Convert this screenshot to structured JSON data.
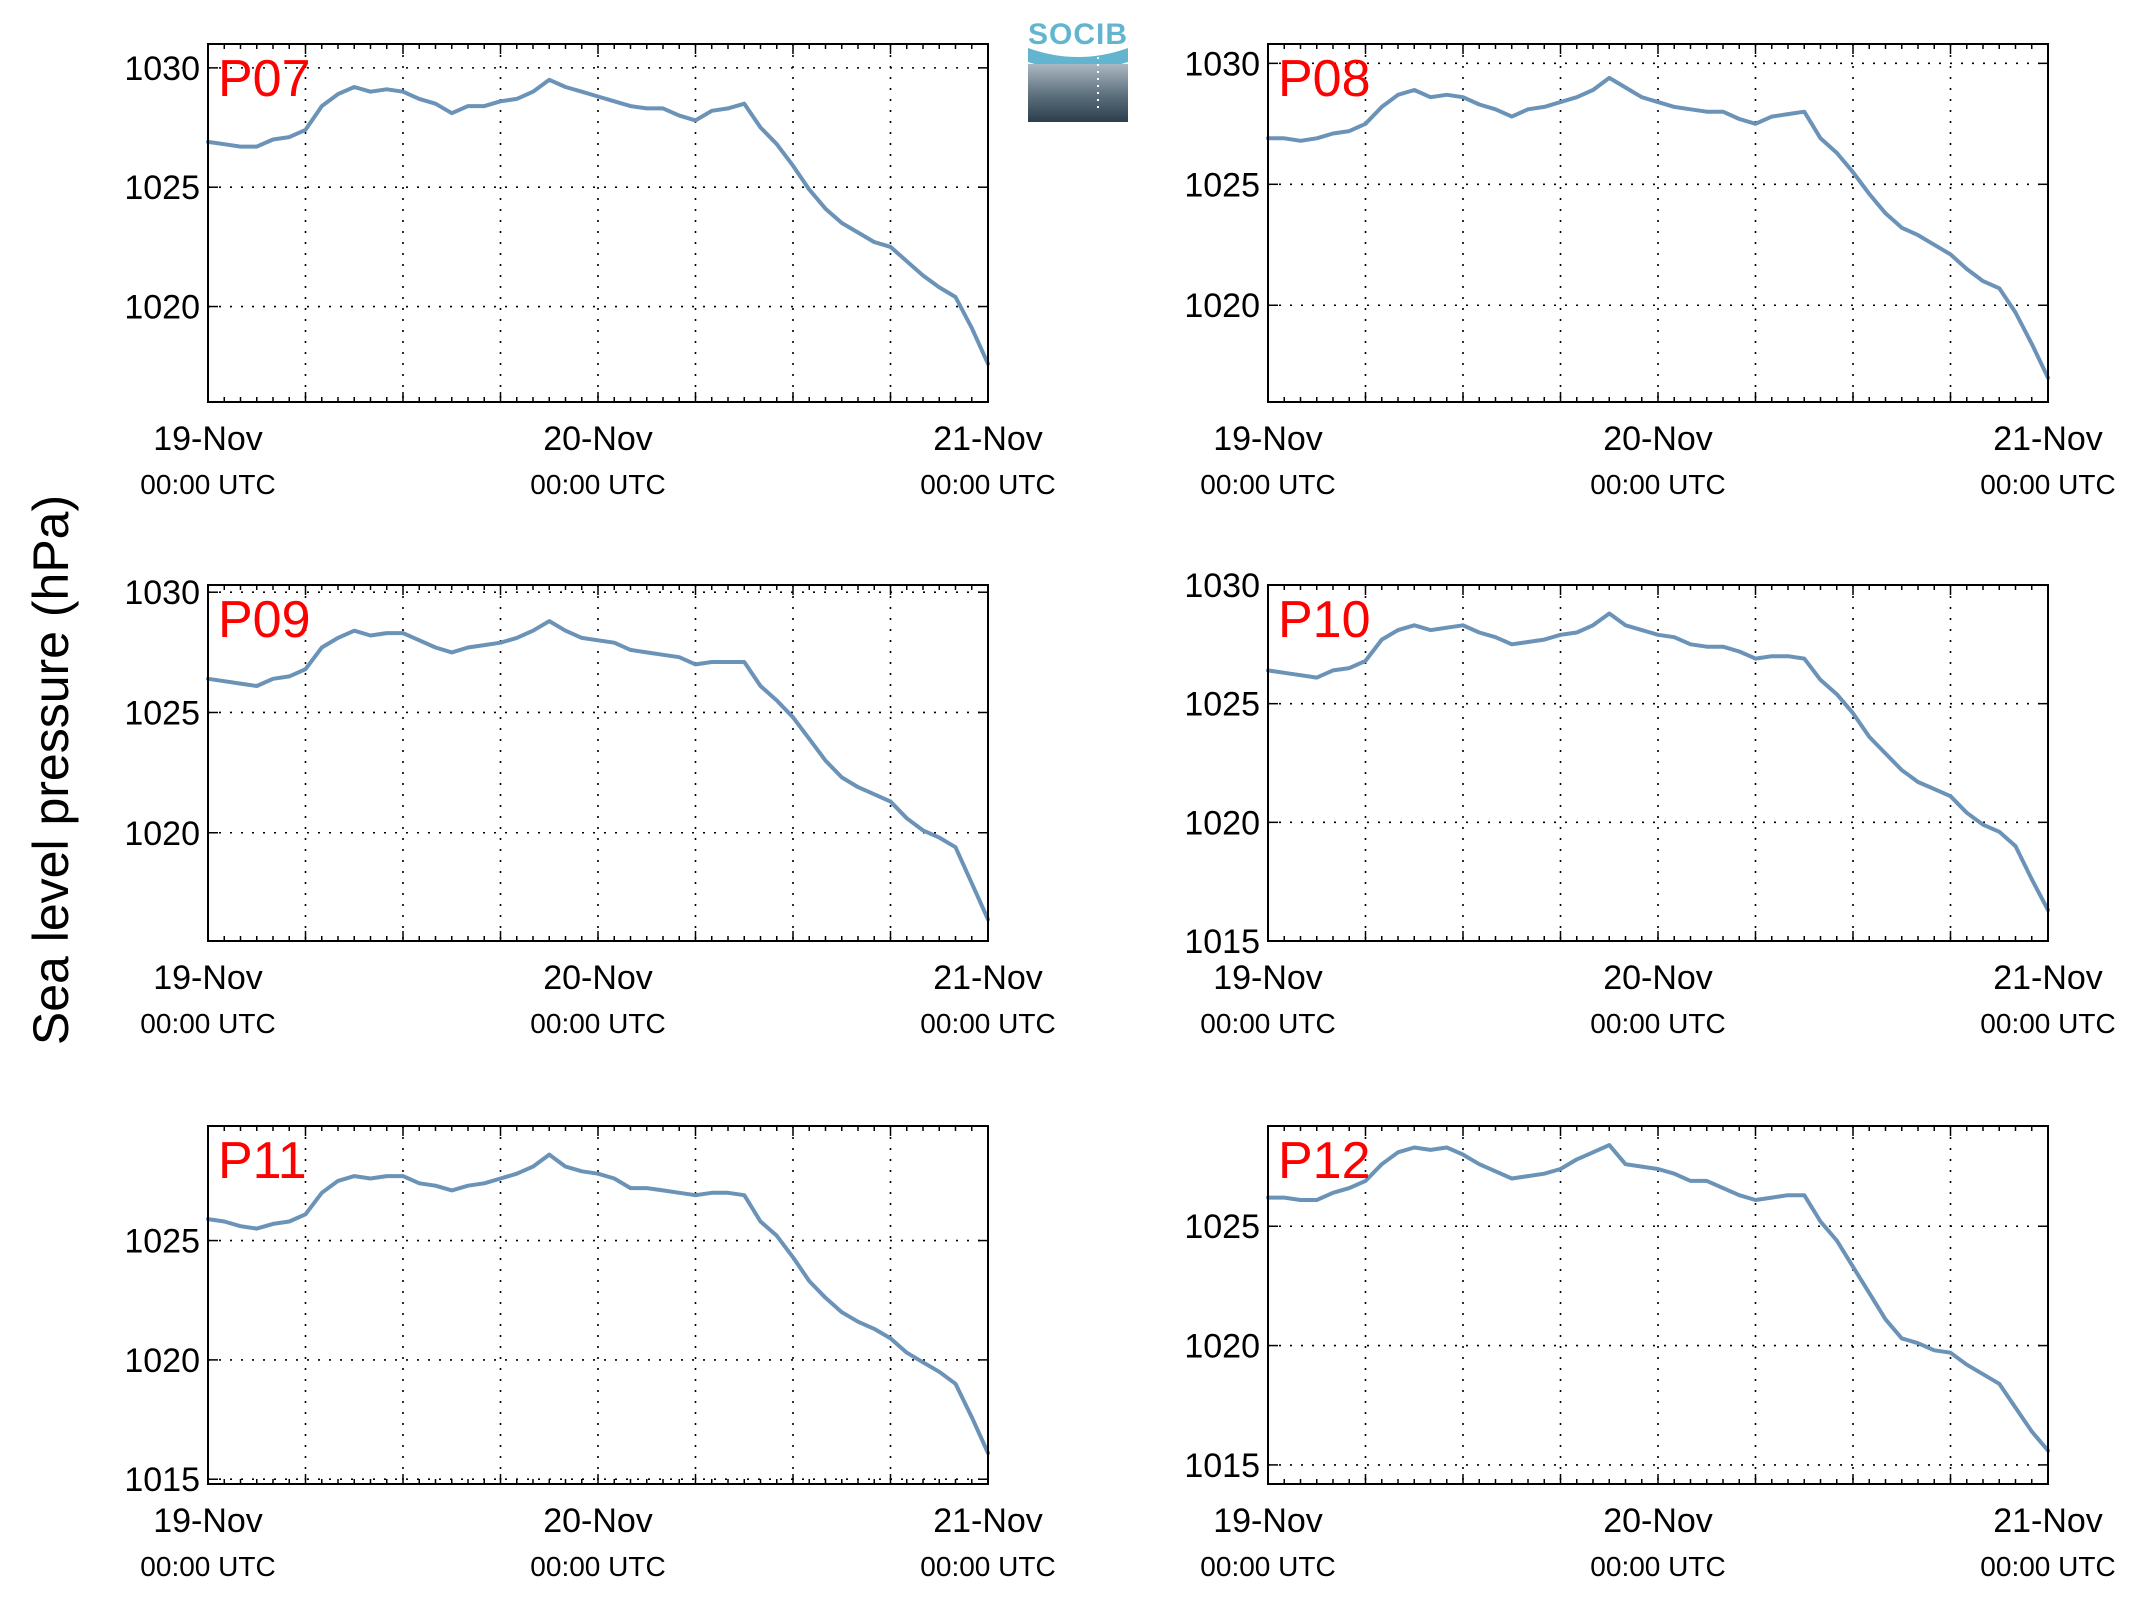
{
  "figure": {
    "ylabel": "Sea level pressure (hPa)",
    "logo_text": "SOCIB"
  },
  "chart_data": [
    {
      "type": "line",
      "title": "P07",
      "ylim": [
        1016,
        1031
      ],
      "yticks": [
        1020,
        1025,
        1030
      ],
      "ytick_labels": [
        "1020",
        "1025",
        "1030"
      ],
      "xlim": [
        0,
        48
      ],
      "xtick_labels": [
        {
          "pos": 0,
          "line1": "19-Nov",
          "line2": "00:00 UTC"
        },
        {
          "pos": 24,
          "line1": "20-Nov",
          "line2": "00:00 UTC"
        },
        {
          "pos": 48,
          "line1": "21-Nov",
          "line2": "00:00 UTC"
        }
      ],
      "grid": true,
      "x": [
        0,
        1,
        2,
        3,
        4,
        5,
        6,
        7,
        8,
        9,
        10,
        11,
        12,
        13,
        14,
        15,
        16,
        17,
        18,
        19,
        20,
        21,
        22,
        23,
        24,
        25,
        26,
        27,
        28,
        29,
        30,
        31,
        32,
        33,
        34,
        35,
        36,
        37,
        38,
        39,
        40,
        41,
        42,
        43,
        44,
        45,
        46,
        47,
        48
      ],
      "values": [
        1026.9,
        1026.8,
        1026.7,
        1026.7,
        1027.0,
        1027.1,
        1027.4,
        1028.4,
        1028.9,
        1029.2,
        1029.0,
        1029.1,
        1029.0,
        1028.7,
        1028.5,
        1028.1,
        1028.4,
        1028.4,
        1028.6,
        1028.7,
        1029.0,
        1029.5,
        1029.2,
        1029.0,
        1028.8,
        1028.6,
        1028.4,
        1028.3,
        1028.3,
        1028.0,
        1027.8,
        1028.2,
        1028.3,
        1028.5,
        1027.5,
        1026.8,
        1025.9,
        1024.9,
        1024.1,
        1023.5,
        1023.1,
        1022.7,
        1022.5,
        1021.9,
        1021.3,
        1020.8,
        1020.4,
        1019.1,
        1017.6
      ]
    },
    {
      "type": "line",
      "title": "P08",
      "ylim": [
        1016,
        1030.8
      ],
      "yticks": [
        1020,
        1025,
        1030
      ],
      "ytick_labels": [
        "1020",
        "1025",
        "1030"
      ],
      "xlim": [
        0,
        48
      ],
      "xtick_labels": [
        {
          "pos": 0,
          "line1": "19-Nov",
          "line2": "00:00 UTC"
        },
        {
          "pos": 24,
          "line1": "20-Nov",
          "line2": "00:00 UTC"
        },
        {
          "pos": 48,
          "line1": "21-Nov",
          "line2": "00:00 UTC"
        }
      ],
      "grid": true,
      "x": [
        0,
        1,
        2,
        3,
        4,
        5,
        6,
        7,
        8,
        9,
        10,
        11,
        12,
        13,
        14,
        15,
        16,
        17,
        18,
        19,
        20,
        21,
        22,
        23,
        24,
        25,
        26,
        27,
        28,
        29,
        30,
        31,
        32,
        33,
        34,
        35,
        36,
        37,
        38,
        39,
        40,
        41,
        42,
        43,
        44,
        45,
        46,
        47,
        48
      ],
      "values": [
        1026.9,
        1026.9,
        1026.8,
        1026.9,
        1027.1,
        1027.2,
        1027.5,
        1028.2,
        1028.7,
        1028.9,
        1028.6,
        1028.7,
        1028.6,
        1028.3,
        1028.1,
        1027.8,
        1028.1,
        1028.2,
        1028.4,
        1028.6,
        1028.9,
        1029.4,
        1029.0,
        1028.6,
        1028.4,
        1028.2,
        1028.1,
        1028.0,
        1028.0,
        1027.7,
        1027.5,
        1027.8,
        1027.9,
        1028.0,
        1026.9,
        1026.3,
        1025.5,
        1024.6,
        1023.8,
        1023.2,
        1022.9,
        1022.5,
        1022.1,
        1021.5,
        1021.0,
        1020.7,
        1019.7,
        1018.4,
        1017.0
      ]
    },
    {
      "type": "line",
      "title": "P09",
      "ylim": [
        1015.5,
        1030.3
      ],
      "yticks": [
        1020,
        1025,
        1030
      ],
      "ytick_labels": [
        "1020",
        "1025",
        "1030"
      ],
      "xlim": [
        0,
        48
      ],
      "xtick_labels": [
        {
          "pos": 0,
          "line1": "19-Nov",
          "line2": "00:00 UTC"
        },
        {
          "pos": 24,
          "line1": "20-Nov",
          "line2": "00:00 UTC"
        },
        {
          "pos": 48,
          "line1": "21-Nov",
          "line2": "00:00 UTC"
        }
      ],
      "grid": true,
      "x": [
        0,
        1,
        2,
        3,
        4,
        5,
        6,
        7,
        8,
        9,
        10,
        11,
        12,
        13,
        14,
        15,
        16,
        17,
        18,
        19,
        20,
        21,
        22,
        23,
        24,
        25,
        26,
        27,
        28,
        29,
        30,
        31,
        32,
        33,
        34,
        35,
        36,
        37,
        38,
        39,
        40,
        41,
        42,
        43,
        44,
        45,
        46,
        47,
        48
      ],
      "values": [
        1026.4,
        1026.3,
        1026.2,
        1026.1,
        1026.4,
        1026.5,
        1026.8,
        1027.7,
        1028.1,
        1028.4,
        1028.2,
        1028.3,
        1028.3,
        1028.0,
        1027.7,
        1027.5,
        1027.7,
        1027.8,
        1027.9,
        1028.1,
        1028.4,
        1028.8,
        1028.4,
        1028.1,
        1028.0,
        1027.9,
        1027.6,
        1027.5,
        1027.4,
        1027.3,
        1027.0,
        1027.1,
        1027.1,
        1027.1,
        1026.1,
        1025.5,
        1024.8,
        1023.9,
        1023.0,
        1022.3,
        1021.9,
        1021.6,
        1021.3,
        1020.6,
        1020.1,
        1019.8,
        1019.4,
        1017.9,
        1016.4
      ]
    },
    {
      "type": "line",
      "title": "P10",
      "ylim": [
        1015,
        1030
      ],
      "yticks": [
        1015,
        1020,
        1025,
        1030
      ],
      "ytick_labels": [
        "1015",
        "1020",
        "1025",
        "1030"
      ],
      "xlim": [
        0,
        48
      ],
      "xtick_labels": [
        {
          "pos": 0,
          "line1": "19-Nov",
          "line2": "00:00 UTC"
        },
        {
          "pos": 24,
          "line1": "20-Nov",
          "line2": "00:00 UTC"
        },
        {
          "pos": 48,
          "line1": "21-Nov",
          "line2": "00:00 UTC"
        }
      ],
      "grid": true,
      "x": [
        0,
        1,
        2,
        3,
        4,
        5,
        6,
        7,
        8,
        9,
        10,
        11,
        12,
        13,
        14,
        15,
        16,
        17,
        18,
        19,
        20,
        21,
        22,
        23,
        24,
        25,
        26,
        27,
        28,
        29,
        30,
        31,
        32,
        33,
        34,
        35,
        36,
        37,
        38,
        39,
        40,
        41,
        42,
        43,
        44,
        45,
        46,
        47,
        48
      ],
      "values": [
        1026.4,
        1026.3,
        1026.2,
        1026.1,
        1026.4,
        1026.5,
        1026.8,
        1027.7,
        1028.1,
        1028.3,
        1028.1,
        1028.2,
        1028.3,
        1028.0,
        1027.8,
        1027.5,
        1027.6,
        1027.7,
        1027.9,
        1028.0,
        1028.3,
        1028.8,
        1028.3,
        1028.1,
        1027.9,
        1027.8,
        1027.5,
        1027.4,
        1027.4,
        1027.2,
        1026.9,
        1027.0,
        1027.0,
        1026.9,
        1026.0,
        1025.4,
        1024.6,
        1023.6,
        1022.9,
        1022.2,
        1021.7,
        1021.4,
        1021.1,
        1020.4,
        1019.9,
        1019.6,
        1019.0,
        1017.6,
        1016.3
      ]
    },
    {
      "type": "line",
      "title": "P11",
      "ylim": [
        1014.8,
        1029.8
      ],
      "yticks": [
        1015,
        1020,
        1025
      ],
      "ytick_labels": [
        "1015",
        "1020",
        "1025"
      ],
      "xlim": [
        0,
        48
      ],
      "xtick_labels": [
        {
          "pos": 0,
          "line1": "19-Nov",
          "line2": "00:00 UTC"
        },
        {
          "pos": 24,
          "line1": "20-Nov",
          "line2": "00:00 UTC"
        },
        {
          "pos": 48,
          "line1": "21-Nov",
          "line2": "00:00 UTC"
        }
      ],
      "grid": true,
      "x": [
        0,
        1,
        2,
        3,
        4,
        5,
        6,
        7,
        8,
        9,
        10,
        11,
        12,
        13,
        14,
        15,
        16,
        17,
        18,
        19,
        20,
        21,
        22,
        23,
        24,
        25,
        26,
        27,
        28,
        29,
        30,
        31,
        32,
        33,
        34,
        35,
        36,
        37,
        38,
        39,
        40,
        41,
        42,
        43,
        44,
        45,
        46,
        47,
        48
      ],
      "values": [
        1025.9,
        1025.8,
        1025.6,
        1025.5,
        1025.7,
        1025.8,
        1026.1,
        1027.0,
        1027.5,
        1027.7,
        1027.6,
        1027.7,
        1027.7,
        1027.4,
        1027.3,
        1027.1,
        1027.3,
        1027.4,
        1027.6,
        1027.8,
        1028.1,
        1028.6,
        1028.1,
        1027.9,
        1027.8,
        1027.6,
        1027.2,
        1027.2,
        1027.1,
        1027.0,
        1026.9,
        1027.0,
        1027.0,
        1026.9,
        1025.8,
        1025.2,
        1024.3,
        1023.3,
        1022.6,
        1022.0,
        1021.6,
        1021.3,
        1020.9,
        1020.3,
        1019.9,
        1019.5,
        1019.0,
        1017.6,
        1016.1
      ]
    },
    {
      "type": "line",
      "title": "P12",
      "ylim": [
        1014.2,
        1029.2
      ],
      "yticks": [
        1015,
        1020,
        1025
      ],
      "ytick_labels": [
        "1015",
        "1020",
        "1025"
      ],
      "xlim": [
        0,
        48
      ],
      "xtick_labels": [
        {
          "pos": 0,
          "line1": "19-Nov",
          "line2": "00:00 UTC"
        },
        {
          "pos": 24,
          "line1": "20-Nov",
          "line2": "00:00 UTC"
        },
        {
          "pos": 48,
          "line1": "21-Nov",
          "line2": "00:00 UTC"
        }
      ],
      "grid": true,
      "x": [
        0,
        1,
        2,
        3,
        4,
        5,
        6,
        7,
        8,
        9,
        10,
        11,
        12,
        13,
        14,
        15,
        16,
        17,
        18,
        19,
        20,
        21,
        22,
        23,
        24,
        25,
        26,
        27,
        28,
        29,
        30,
        31,
        32,
        33,
        34,
        35,
        36,
        37,
        38,
        39,
        40,
        41,
        42,
        43,
        44,
        45,
        46,
        47,
        48
      ],
      "values": [
        1026.2,
        1026.2,
        1026.1,
        1026.1,
        1026.4,
        1026.6,
        1026.9,
        1027.6,
        1028.1,
        1028.3,
        1028.2,
        1028.3,
        1028.0,
        1027.6,
        1027.3,
        1027.0,
        1027.1,
        1027.2,
        1027.4,
        1027.8,
        1028.1,
        1028.4,
        1027.6,
        1027.5,
        1027.4,
        1027.2,
        1026.9,
        1026.9,
        1026.6,
        1026.3,
        1026.1,
        1026.2,
        1026.3,
        1026.3,
        1025.2,
        1024.4,
        1023.3,
        1022.2,
        1021.1,
        1020.3,
        1020.1,
        1019.8,
        1019.7,
        1019.2,
        1018.8,
        1018.4,
        1017.4,
        1016.4,
        1015.6
      ]
    }
  ]
}
